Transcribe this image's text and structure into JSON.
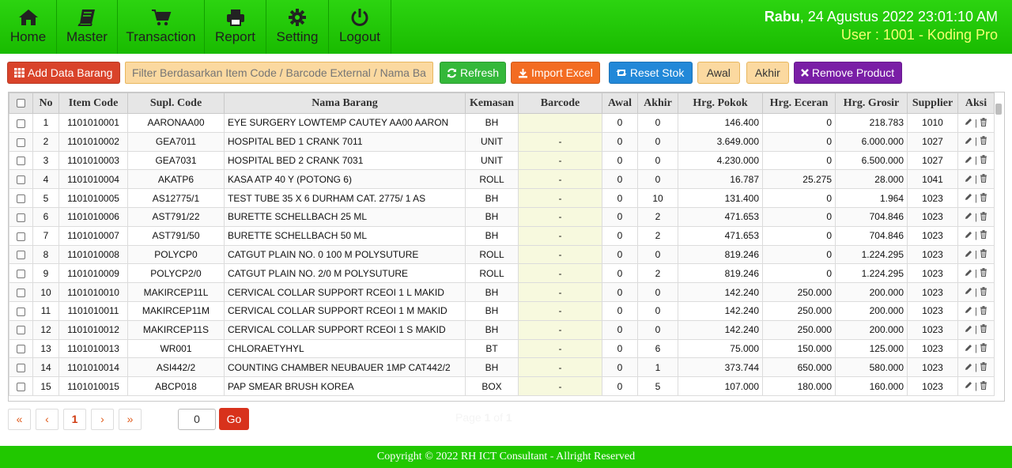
{
  "nav": [
    {
      "label": "Home",
      "icon": "home-icon"
    },
    {
      "label": "Master",
      "icon": "book-icon"
    },
    {
      "label": "Transaction",
      "icon": "cart-icon"
    },
    {
      "label": "Report",
      "icon": "printer-icon"
    },
    {
      "label": "Setting",
      "icon": "gear-icon"
    },
    {
      "label": "Logout",
      "icon": "power-icon"
    }
  ],
  "header": {
    "day": "Rabu",
    "datetime": ", 24 Agustus 2022 23:01:10 AM",
    "user": "User : 1001 - Koding Pro"
  },
  "toolbar": {
    "add_label": "Add Data Barang",
    "filter_placeholder": "Filter Berdasarkan Item Code / Barcode External / Nama Barang",
    "refresh_label": "Refresh",
    "import_label": "Import Excel",
    "reset_label": "Reset Stok",
    "awal_label": "Awal",
    "akhir_label": "Akhir",
    "remove_label": "Remove Product"
  },
  "table": {
    "headers": [
      "No",
      "Item Code",
      "Supl. Code",
      "Nama Barang",
      "Kemasan",
      "Barcode",
      "Awal",
      "Akhir",
      "Hrg. Pokok",
      "Hrg. Eceran",
      "Hrg. Grosir",
      "Supplier",
      "Aksi"
    ],
    "rows": [
      {
        "no": "1",
        "item": "1101010001",
        "supl": "AARONAA00",
        "nama": "EYE SURGERY LOWTEMP CAUTEY AA00 AARON",
        "kemasan": "BH",
        "barcode": "",
        "awal": "0",
        "akhir": "0",
        "pokok": "146.400",
        "eceran": "0",
        "grosir": "218.783",
        "supplier": "1010"
      },
      {
        "no": "2",
        "item": "1101010002",
        "supl": "GEA7011",
        "nama": "HOSPITAL BED 1 CRANK 7011",
        "kemasan": "UNIT",
        "barcode": "-",
        "awal": "0",
        "akhir": "0",
        "pokok": "3.649.000",
        "eceran": "0",
        "grosir": "6.000.000",
        "supplier": "1027"
      },
      {
        "no": "3",
        "item": "1101010003",
        "supl": "GEA7031",
        "nama": "HOSPITAL BED 2 CRANK 7031",
        "kemasan": "UNIT",
        "barcode": "-",
        "awal": "0",
        "akhir": "0",
        "pokok": "4.230.000",
        "eceran": "0",
        "grosir": "6.500.000",
        "supplier": "1027"
      },
      {
        "no": "4",
        "item": "1101010004",
        "supl": "AKATP6",
        "nama": "KASA ATP 40 Y (POTONG 6)",
        "kemasan": "ROLL",
        "barcode": "-",
        "awal": "0",
        "akhir": "0",
        "pokok": "16.787",
        "eceran": "25.275",
        "grosir": "28.000",
        "supplier": "1041"
      },
      {
        "no": "5",
        "item": "1101010005",
        "supl": "AS12775/1",
        "nama": "TEST TUBE 35 X 6 DURHAM CAT. 2775/ 1 AS",
        "kemasan": "BH",
        "barcode": "-",
        "awal": "0",
        "akhir": "10",
        "pokok": "131.400",
        "eceran": "0",
        "grosir": "1.964",
        "supplier": "1023"
      },
      {
        "no": "6",
        "item": "1101010006",
        "supl": "AST791/22",
        "nama": "BURETTE SCHELLBACH 25 ML",
        "kemasan": "BH",
        "barcode": "-",
        "awal": "0",
        "akhir": "2",
        "pokok": "471.653",
        "eceran": "0",
        "grosir": "704.846",
        "supplier": "1023"
      },
      {
        "no": "7",
        "item": "1101010007",
        "supl": "AST791/50",
        "nama": "BURETTE SCHELLBACH 50 ML",
        "kemasan": "BH",
        "barcode": "-",
        "awal": "0",
        "akhir": "2",
        "pokok": "471.653",
        "eceran": "0",
        "grosir": "704.846",
        "supplier": "1023"
      },
      {
        "no": "8",
        "item": "1101010008",
        "supl": "POLYCP0",
        "nama": "CATGUT PLAIN NO. 0 100 M POLYSUTURE",
        "kemasan": "ROLL",
        "barcode": "-",
        "awal": "0",
        "akhir": "0",
        "pokok": "819.246",
        "eceran": "0",
        "grosir": "1.224.295",
        "supplier": "1023"
      },
      {
        "no": "9",
        "item": "1101010009",
        "supl": "POLYCP2/0",
        "nama": "CATGUT PLAIN NO. 2/0 M POLYSUTURE",
        "kemasan": "ROLL",
        "barcode": "-",
        "awal": "0",
        "akhir": "2",
        "pokok": "819.246",
        "eceran": "0",
        "grosir": "1.224.295",
        "supplier": "1023"
      },
      {
        "no": "10",
        "item": "1101010010",
        "supl": "MAKIRCEP11L",
        "nama": "CERVICAL COLLAR SUPPORT RCEOI 1 L MAKID",
        "kemasan": "BH",
        "barcode": "-",
        "awal": "0",
        "akhir": "0",
        "pokok": "142.240",
        "eceran": "250.000",
        "grosir": "200.000",
        "supplier": "1023"
      },
      {
        "no": "11",
        "item": "1101010011",
        "supl": "MAKIRCEP11M",
        "nama": "CERVICAL COLLAR SUPPORT RCEOI 1 M MAKID",
        "kemasan": "BH",
        "barcode": "-",
        "awal": "0",
        "akhir": "0",
        "pokok": "142.240",
        "eceran": "250.000",
        "grosir": "200.000",
        "supplier": "1023"
      },
      {
        "no": "12",
        "item": "1101010012",
        "supl": "MAKIRCEP11S",
        "nama": "CERVICAL COLLAR SUPPORT RCEOI 1 S MAKID",
        "kemasan": "BH",
        "barcode": "-",
        "awal": "0",
        "akhir": "0",
        "pokok": "142.240",
        "eceran": "250.000",
        "grosir": "200.000",
        "supplier": "1023"
      },
      {
        "no": "13",
        "item": "1101010013",
        "supl": "WR001",
        "nama": "CHLORAETYHYL",
        "kemasan": "BT",
        "barcode": "-",
        "awal": "0",
        "akhir": "6",
        "pokok": "75.000",
        "eceran": "150.000",
        "grosir": "125.000",
        "supplier": "1023"
      },
      {
        "no": "14",
        "item": "1101010014",
        "supl": "ASI442/2",
        "nama": "COUNTING CHAMBER NEUBAUER 1MP CAT442/2",
        "kemasan": "BH",
        "barcode": "-",
        "awal": "0",
        "akhir": "1",
        "pokok": "373.744",
        "eceran": "650.000",
        "grosir": "580.000",
        "supplier": "1023"
      },
      {
        "no": "15",
        "item": "1101010015",
        "supl": "ABCP018",
        "nama": "PAP SMEAR BRUSH KOREA",
        "kemasan": "BOX",
        "barcode": "-",
        "awal": "0",
        "akhir": "5",
        "pokok": "107.000",
        "eceran": "180.000",
        "grosir": "160.000",
        "supplier": "1023"
      }
    ],
    "aksi_separator": "|"
  },
  "pager": {
    "first": "«",
    "prev": "‹",
    "current": "1",
    "next": "›",
    "last": "»",
    "input_value": "0",
    "go_label": "Go",
    "info_prefix": "Page ",
    "info_current": "1",
    "info_mid": " of ",
    "info_total": "1"
  },
  "footer": {
    "text": "Copyright © 2022 RH ICT Consultant - Allright Reserved"
  }
}
